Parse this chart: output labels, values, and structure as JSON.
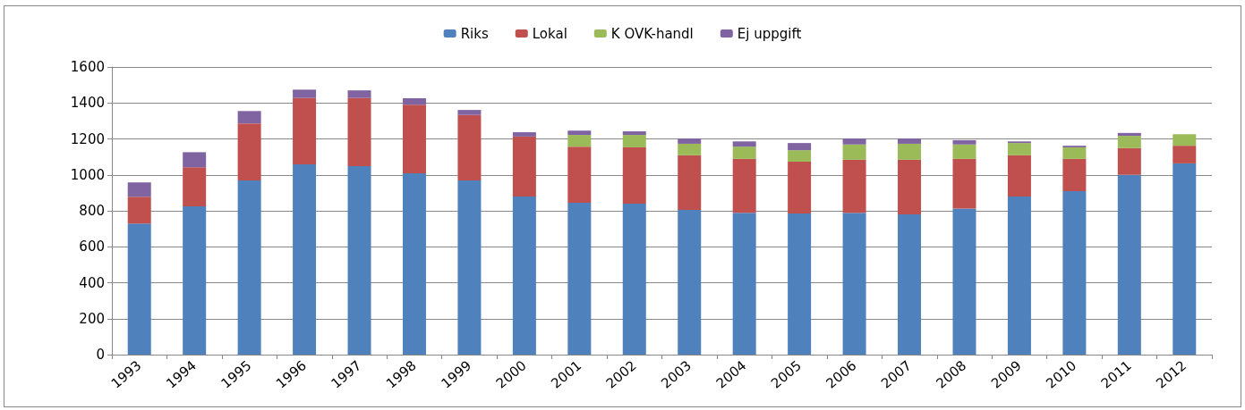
{
  "chart_data": {
    "type": "bar",
    "stacked": true,
    "categories": [
      "1993",
      "1994",
      "1995",
      "1996",
      "1997",
      "1998",
      "1999",
      "2000",
      "2001",
      "2002",
      "2003",
      "2004",
      "2005",
      "2006",
      "2007",
      "2008",
      "2009",
      "2010",
      "2011",
      "2012"
    ],
    "series": [
      {
        "name": "Riks",
        "color": "#4f81bd",
        "values": [
          729,
          825,
          969,
          1058,
          1049,
          1009,
          969,
          880,
          845,
          840,
          805,
          789,
          785,
          789,
          780,
          812,
          880,
          909,
          1000,
          1064
        ]
      },
      {
        "name": "Lokal",
        "color": "#c0504d",
        "values": [
          149,
          217,
          317,
          370,
          379,
          381,
          364,
          333,
          312,
          313,
          304,
          300,
          288,
          295,
          304,
          277,
          229,
          180,
          149,
          98
        ]
      },
      {
        "name": "K OVK-handl",
        "color": "#9bbb59",
        "values": [
          0,
          0,
          0,
          0,
          0,
          0,
          0,
          0,
          65,
          69,
          64,
          68,
          64,
          85,
          89,
          80,
          68,
          64,
          68,
          64
        ]
      },
      {
        "name": "Ej uppgift",
        "color": "#8064a2",
        "values": [
          80,
          84,
          69,
          46,
          42,
          36,
          28,
          24,
          24,
          20,
          29,
          29,
          40,
          33,
          29,
          24,
          9,
          9,
          16,
          0
        ]
      }
    ],
    "ylim": [
      0,
      1600
    ],
    "yticks": [
      0,
      200,
      400,
      600,
      800,
      1000,
      1200,
      1400,
      1600
    ],
    "grid": "y",
    "legend": "top"
  }
}
